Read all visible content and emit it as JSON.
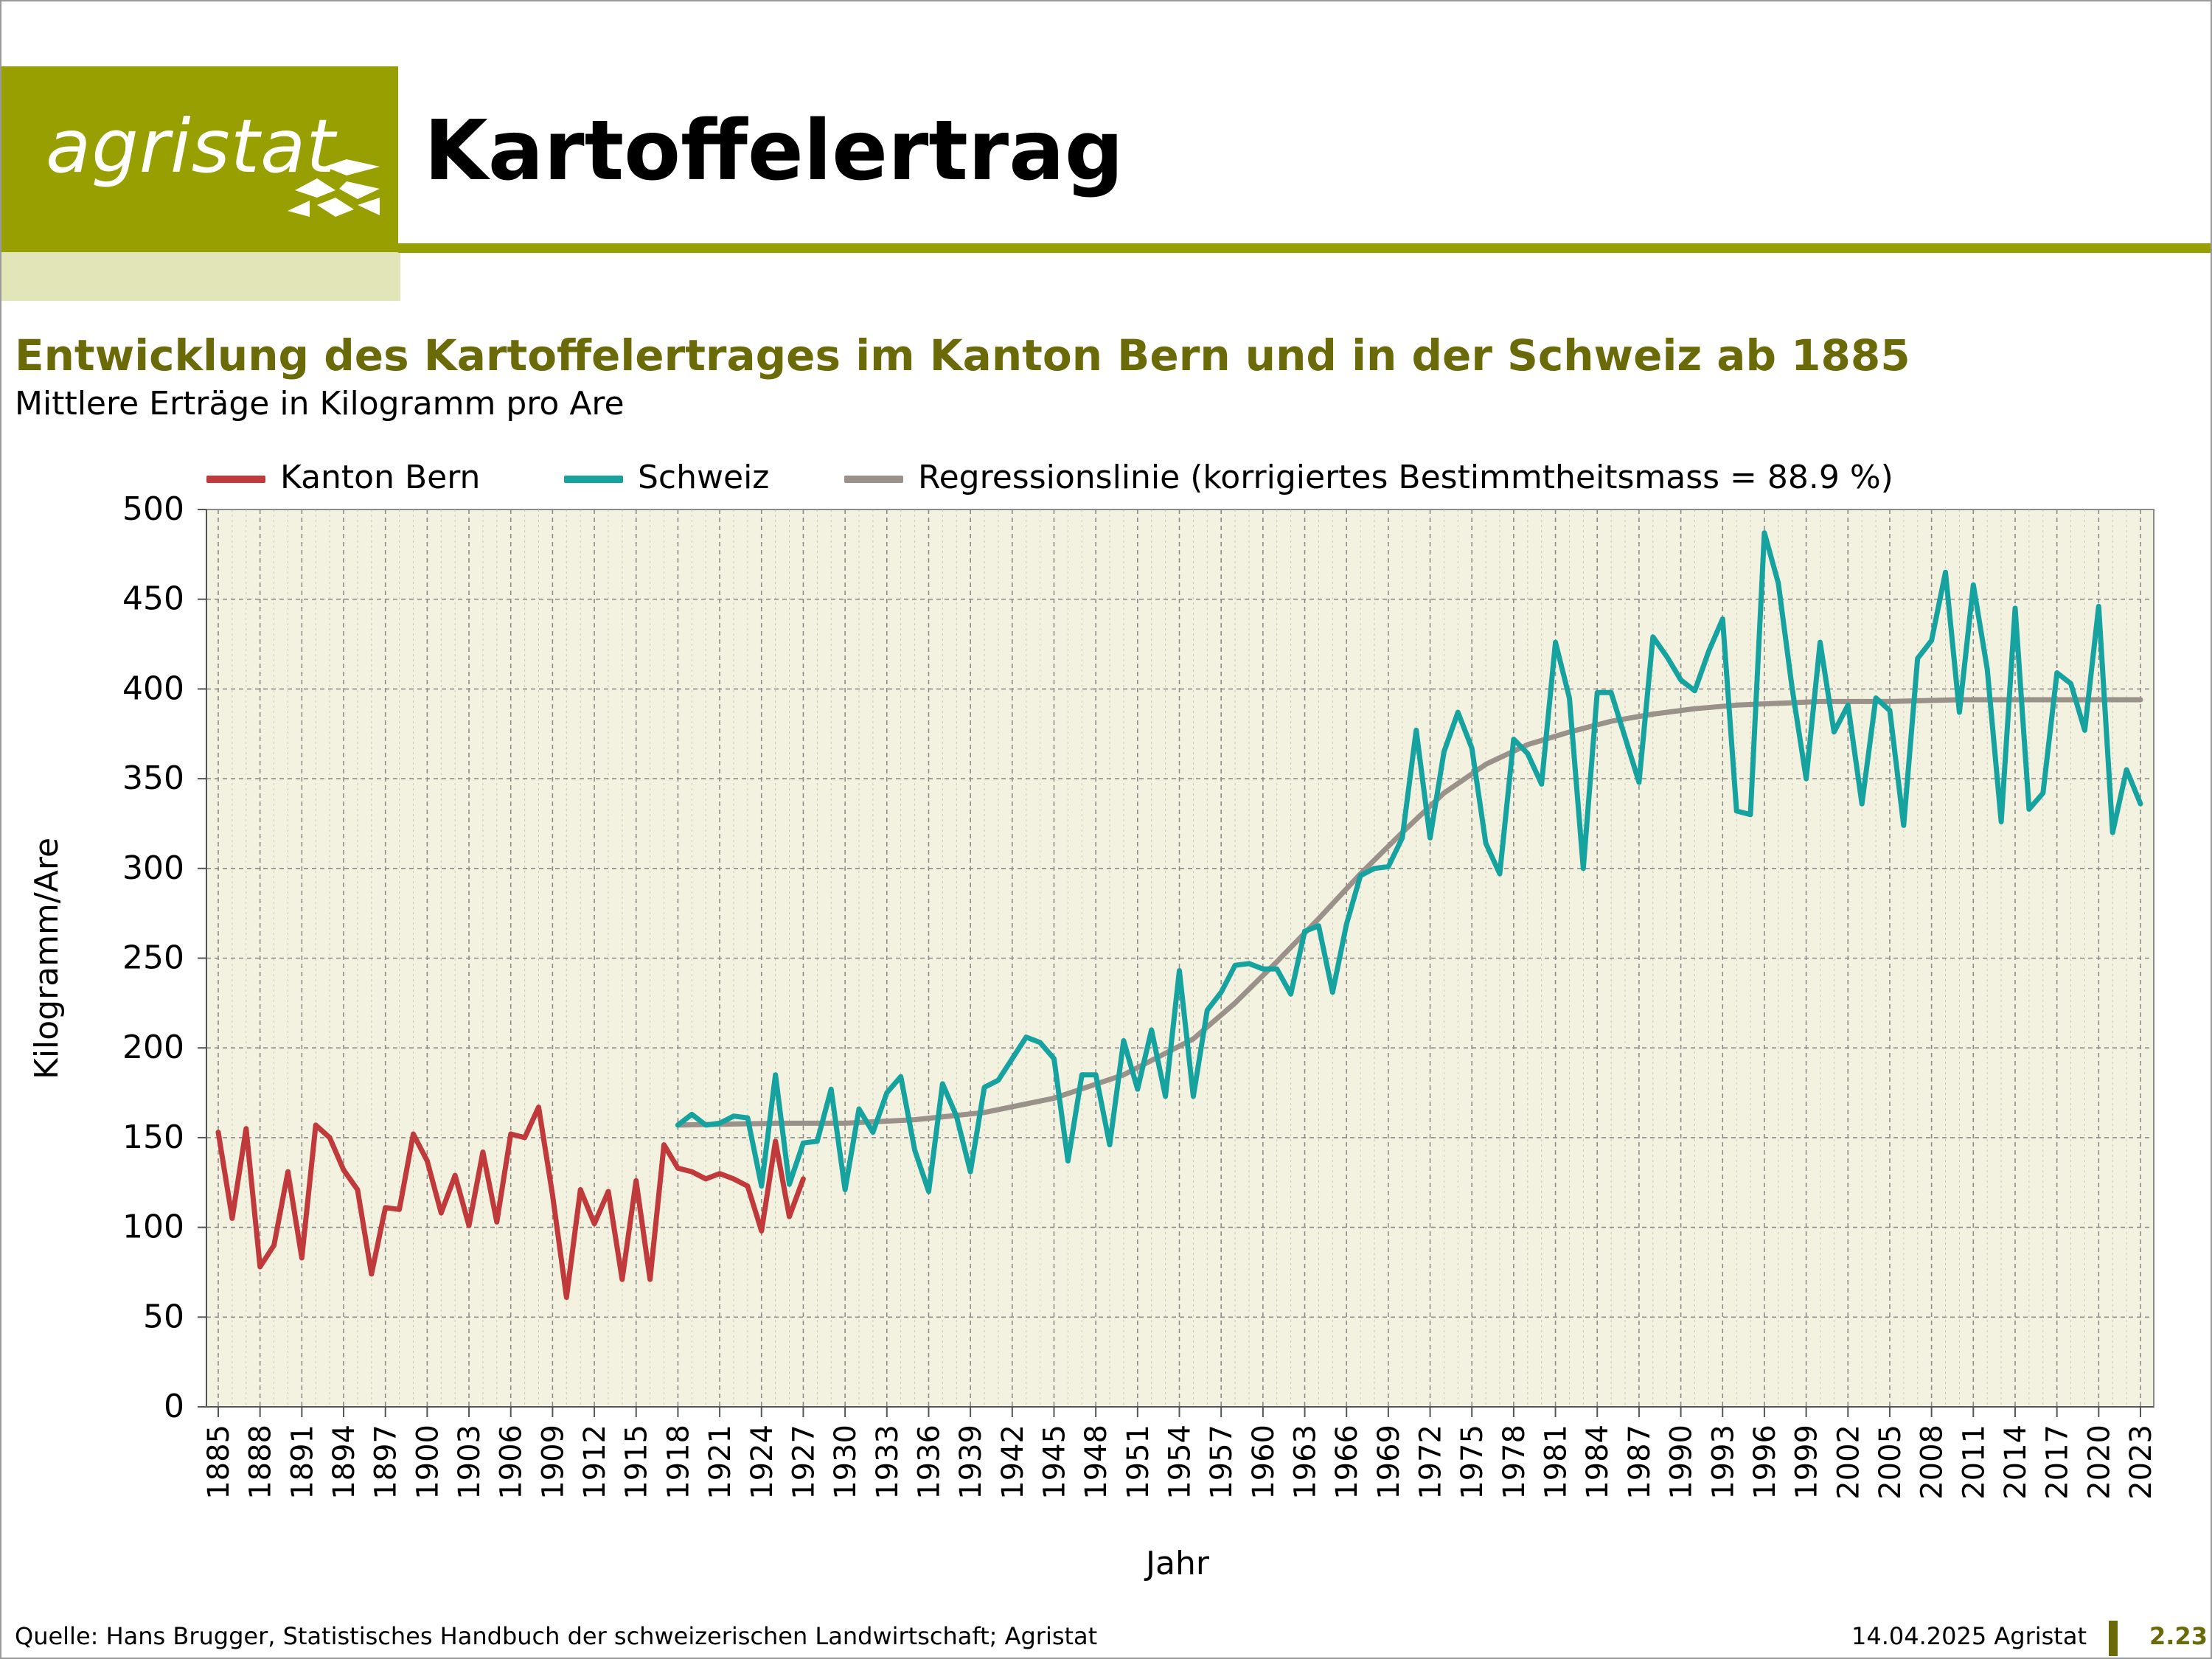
{
  "header": {
    "logo_text": "agristat",
    "page_title": "Kartoffelertrag"
  },
  "chart_title": "Entwicklung des Kartoffelertrages im Kanton Bern und in der Schweiz ab 1885",
  "chart_subtitle": "Mittlere Erträge in Kilogramm pro Are",
  "legend": [
    {
      "label": "Kanton Bern",
      "color": "#c0393b"
    },
    {
      "label": "Schweiz",
      "color": "#16a3a0"
    },
    {
      "label": "Regressionslinie (korrigiertes Bestimmtheitsmass = 88.9 %)",
      "color": "#9a918b"
    }
  ],
  "footer": {
    "source": "Quelle: Hans Brugger, Statistisches Handbuch der schweizerischen Landwirtschaft; Agristat",
    "date": "14.04.2025 Agristat",
    "page": "2.23"
  },
  "colors": {
    "brand": "#97a000",
    "brand_light": "#e2e5b8",
    "title_olive": "#6a6a08",
    "plot_bg": "#f3f2e1"
  },
  "chart_data": {
    "type": "line",
    "xlabel": "Jahr",
    "ylabel": "Kilogramm/Are",
    "xlim": [
      1885,
      2023
    ],
    "ylim": [
      0,
      500
    ],
    "yticks": [
      0,
      50,
      100,
      150,
      200,
      250,
      300,
      350,
      400,
      450,
      500
    ],
    "xticks": [
      1885,
      1888,
      1891,
      1894,
      1897,
      1900,
      1903,
      1906,
      1909,
      1912,
      1915,
      1918,
      1921,
      1924,
      1927,
      1930,
      1933,
      1936,
      1939,
      1942,
      1945,
      1948,
      1951,
      1954,
      1957,
      1960,
      1963,
      1966,
      1969,
      1972,
      1975,
      1978,
      1981,
      1984,
      1987,
      1990,
      1993,
      1996,
      1999,
      2002,
      2005,
      2008,
      2011,
      2014,
      2017,
      2020,
      2023
    ],
    "grid": true,
    "legend_position": "top",
    "series": [
      {
        "name": "Kanton Bern",
        "color": "#c0393b",
        "x": [
          1885,
          1886,
          1887,
          1888,
          1889,
          1890,
          1891,
          1892,
          1893,
          1894,
          1895,
          1896,
          1897,
          1898,
          1899,
          1900,
          1901,
          1902,
          1903,
          1904,
          1905,
          1906,
          1907,
          1908,
          1909,
          1910,
          1911,
          1912,
          1913,
          1914,
          1915,
          1916,
          1917,
          1918,
          1919,
          1920,
          1921,
          1922,
          1923,
          1924,
          1925,
          1926,
          1927
        ],
        "values": [
          153,
          105,
          155,
          78,
          90,
          131,
          83,
          157,
          150,
          132,
          121,
          74,
          111,
          110,
          152,
          137,
          108,
          129,
          101,
          142,
          103,
          152,
          150,
          167,
          118,
          61,
          121,
          102,
          120,
          71,
          126,
          71,
          146,
          133,
          131,
          127,
          130,
          127,
          123,
          98,
          148,
          106,
          127
        ]
      },
      {
        "name": "Schweiz",
        "color": "#16a3a0",
        "x": [
          1918,
          1919,
          1920,
          1921,
          1922,
          1923,
          1924,
          1925,
          1926,
          1927,
          1928,
          1929,
          1930,
          1931,
          1932,
          1933,
          1934,
          1935,
          1936,
          1937,
          1938,
          1939,
          1940,
          1941,
          1942,
          1943,
          1944,
          1945,
          1946,
          1947,
          1948,
          1949,
          1950,
          1951,
          1952,
          1953,
          1954,
          1955,
          1956,
          1957,
          1958,
          1959,
          1960,
          1961,
          1962,
          1963,
          1964,
          1965,
          1966,
          1967,
          1968,
          1969,
          1970,
          1971,
          1972,
          1973,
          1974,
          1975,
          1976,
          1977,
          1978,
          1979,
          1980,
          1981,
          1982,
          1983,
          1984,
          1985,
          1986,
          1987,
          1988,
          1989,
          1990,
          1991,
          1992,
          1993,
          1994,
          1995,
          1996,
          1997,
          1998,
          1999,
          2000,
          2001,
          2002,
          2003,
          2004,
          2005,
          2006,
          2007,
          2008,
          2009,
          2010,
          2011,
          2012,
          2013,
          2014,
          2015,
          2016,
          2017,
          2018,
          2019,
          2020,
          2021,
          2022,
          2023
        ],
        "values": [
          157,
          163,
          157,
          158,
          162,
          161,
          123,
          185,
          124,
          147,
          148,
          177,
          121,
          166,
          153,
          175,
          184,
          143,
          120,
          180,
          162,
          131,
          178,
          182,
          194,
          206,
          203,
          194,
          137,
          185,
          185,
          146,
          204,
          177,
          210,
          173,
          243,
          173,
          221,
          231,
          246,
          247,
          244,
          244,
          230,
          265,
          268,
          231,
          269,
          296,
          300,
          301,
          317,
          377,
          317,
          365,
          387,
          367,
          314,
          297,
          372,
          364,
          347,
          426,
          395,
          300,
          398,
          398,
          373,
          348,
          429,
          418,
          405,
          399,
          421,
          439,
          332,
          330,
          487,
          459,
          400,
          350,
          426,
          376,
          391,
          336,
          395,
          388,
          324,
          417,
          427,
          465,
          387,
          458,
          411,
          326,
          445,
          333,
          342,
          409,
          403,
          377,
          446,
          320,
          355,
          336
        ]
      },
      {
        "name": "Regressionslinie (korrigiertes Bestimmtheitsmass = 88.9 %)",
        "color": "#9a918b",
        "x": [
          1918,
          1925,
          1930,
          1935,
          1940,
          1945,
          1950,
          1955,
          1958,
          1961,
          1964,
          1967,
          1970,
          1973,
          1976,
          1979,
          1982,
          1985,
          1988,
          1991,
          1994,
          1997,
          2000,
          2005,
          2010,
          2015,
          2020,
          2023
        ],
        "values": [
          157,
          158,
          158,
          160,
          164,
          172,
          185,
          205,
          225,
          248,
          272,
          297,
          320,
          342,
          358,
          369,
          376,
          382,
          386,
          389,
          391,
          392,
          393,
          393,
          394,
          394,
          394,
          394
        ]
      }
    ]
  }
}
